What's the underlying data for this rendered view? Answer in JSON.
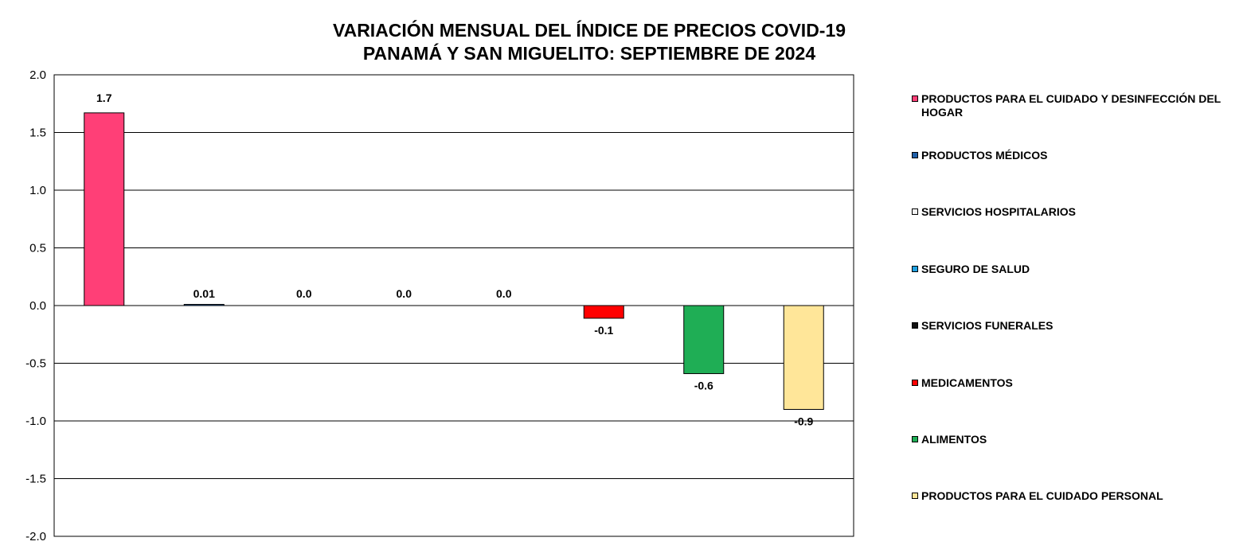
{
  "chart_data": {
    "type": "bar",
    "title": "VARIACIÓN MENSUAL DEL ÍNDICE DE PRECIOS COVID-19",
    "subtitle": "PANAMÁ Y SAN MIGUELITO: SEPTIEMBRE DE 2024",
    "xlabel": "",
    "ylabel": "",
    "ylim": [
      -2.0,
      2.0
    ],
    "yticks": [
      "2.0",
      "1.5",
      "1.0",
      "0.5",
      "0.0",
      "-0.5",
      "-1.0",
      "-1.5",
      "-2.0"
    ],
    "ytick_values": [
      2.0,
      1.5,
      1.0,
      0.5,
      0.0,
      -0.5,
      -1.0,
      -1.5,
      -2.0
    ],
    "grid": true,
    "legend_position": "right",
    "series": [
      {
        "name": "PRODUCTOS PARA EL CUIDADO Y DESINFECCIÓN DEL HOGAR",
        "value": 1.67,
        "label": "1.7",
        "color": "#ff3f77"
      },
      {
        "name": "PRODUCTOS MÉDICOS",
        "value": 0.01,
        "label": "0.01",
        "color": "#1f5fa8"
      },
      {
        "name": "SERVICIOS HOSPITALARIOS",
        "value": 0.0,
        "label": "0.0",
        "color": "#f2f2f2"
      },
      {
        "name": "SEGURO DE SALUD",
        "value": 0.0,
        "label": "0.0",
        "color": "#1fa0e0"
      },
      {
        "name": "SERVICIOS FUNERALES",
        "value": 0.0,
        "label": "0.0",
        "color": "#111111"
      },
      {
        "name": "MEDICAMENTOS",
        "value": -0.11,
        "label": "-0.1",
        "color": "#ff0000"
      },
      {
        "name": "ALIMENTOS",
        "value": -0.59,
        "label": "-0.6",
        "color": "#1fae55"
      },
      {
        "name": "PRODUCTOS PARA EL CUIDADO PERSONAL",
        "value": -0.9,
        "label": "-0.9",
        "color": "#ffe699"
      }
    ]
  }
}
